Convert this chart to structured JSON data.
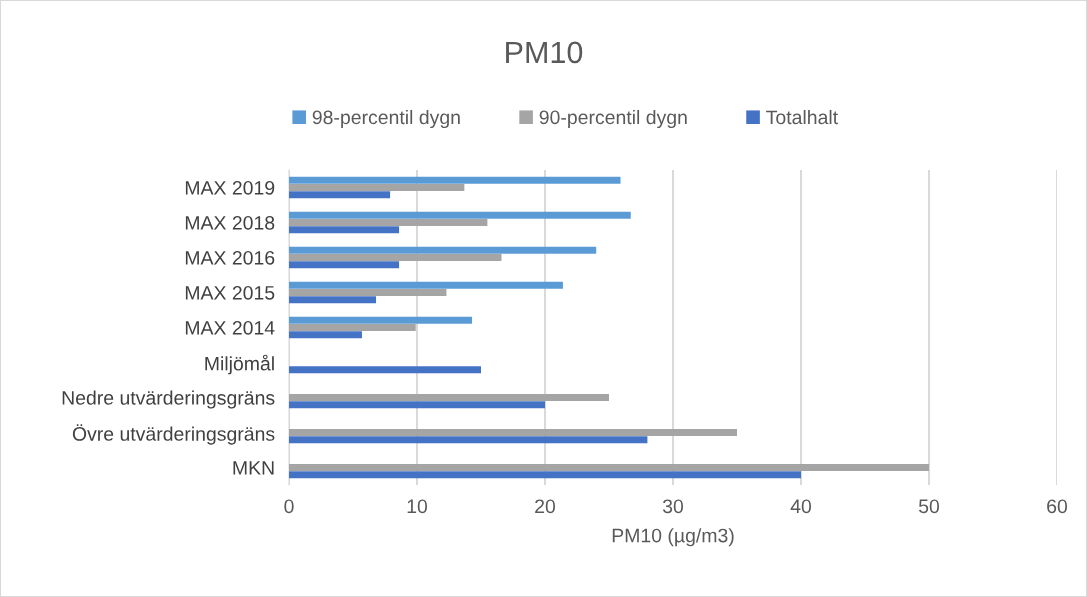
{
  "chart_data": {
    "type": "bar",
    "orientation": "horizontal",
    "title": "PM10",
    "xlabel": "PM10 (µg/m3)",
    "categories": [
      "MAX 2019",
      "MAX 2018",
      "MAX 2016",
      "MAX 2015",
      "MAX 2014",
      "Miljömål",
      "Nedre utvärderingsgräns",
      "Övre utvärderingsgräns",
      "MKN"
    ],
    "series": [
      {
        "name": "98-percentil dygn",
        "color": "#5b9bd5",
        "values": [
          25.9,
          26.7,
          24.0,
          21.4,
          14.3,
          null,
          null,
          null,
          null
        ]
      },
      {
        "name": "90-percentil dygn",
        "color": "#a5a5a5",
        "values": [
          13.7,
          15.5,
          16.6,
          12.3,
          9.9,
          null,
          25,
          35,
          50
        ]
      },
      {
        "name": "Totalhalt",
        "color": "#4472c4",
        "values": [
          7.9,
          8.6,
          8.6,
          6.8,
          5.7,
          15,
          20,
          28,
          40
        ]
      }
    ],
    "xlim": [
      0,
      60
    ],
    "xticks": [
      0,
      10,
      20,
      30,
      40,
      50,
      60
    ],
    "grid": "x",
    "legend": "top"
  }
}
